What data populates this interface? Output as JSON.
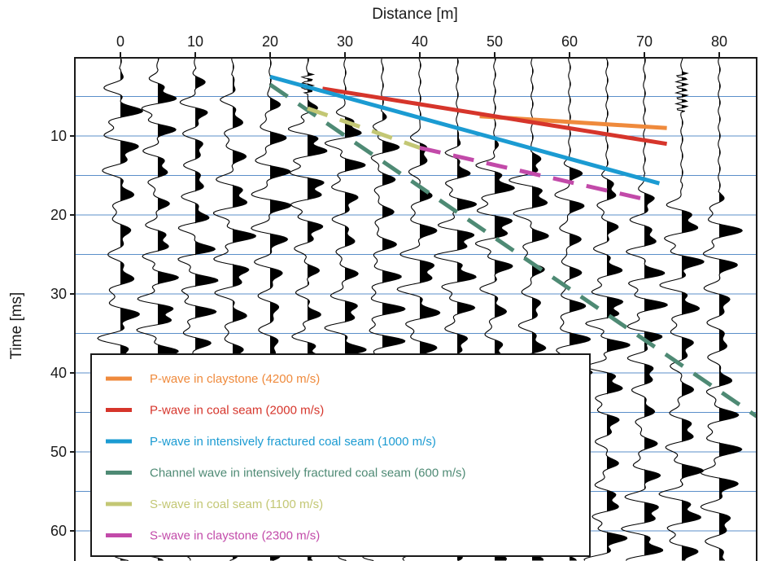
{
  "chart_data": {
    "type": "line",
    "xlabel": "Distance [m]",
    "ylabel": "Time [ms]",
    "xlim": [
      -6,
      83
    ],
    "ylim": [
      0,
      66
    ],
    "x_axis_position": "top",
    "y_axis_inverted": true,
    "x_ticks": [
      0,
      10,
      20,
      30,
      40,
      50,
      60,
      70,
      80
    ],
    "y_ticks": [
      10,
      20,
      30,
      40,
      50,
      60
    ],
    "gridlines_y": [
      5,
      10,
      15,
      20,
      25,
      30,
      35,
      40,
      45,
      50,
      55,
      60,
      65
    ],
    "grid_color": "#5b8fc9",
    "background_traces": {
      "description_visible": "seismic wiggle traces with black filled positive lobes",
      "trace_offsets_m": [
        0,
        5,
        10,
        15,
        20,
        25,
        30,
        35,
        40,
        45,
        50,
        55,
        60,
        65,
        70,
        75,
        80
      ]
    },
    "series": [
      {
        "name": "P-wave in claystone (4200 m/s)",
        "color": "#ef8a3c",
        "dashed": false,
        "x": [
          48,
          73
        ],
        "y": [
          7.5,
          9.0
        ]
      },
      {
        "name": "P-wave in coal seam (2000 m/s)",
        "color": "#d6352b",
        "dashed": false,
        "x": [
          27,
          73
        ],
        "y": [
          4.0,
          11.0
        ]
      },
      {
        "name": "P-wave in intensively fractured coal seam (1000 m/s)",
        "color": "#1b9bd2",
        "dashed": false,
        "x": [
          20,
          72
        ],
        "y": [
          2.5,
          16.0
        ]
      },
      {
        "name": "Channel wave in intensively fractured coal seam (600 m/s)",
        "color": "#4e8a74",
        "dashed": true,
        "x": [
          20,
          85
        ],
        "y": [
          3.5,
          45.5
        ]
      },
      {
        "name": "S-wave in coal seam (1100 m/s)",
        "color": "#c3c774",
        "dashed": true,
        "x": [
          25,
          40
        ],
        "y": [
          6.5,
          11.5
        ]
      },
      {
        "name": "S-wave in claystone (2300 m/s)",
        "color": "#c24aa9",
        "dashed": true,
        "x": [
          40,
          70
        ],
        "y": [
          11.5,
          18.0
        ]
      }
    ],
    "legend": {
      "placement": "bottom-left"
    }
  }
}
